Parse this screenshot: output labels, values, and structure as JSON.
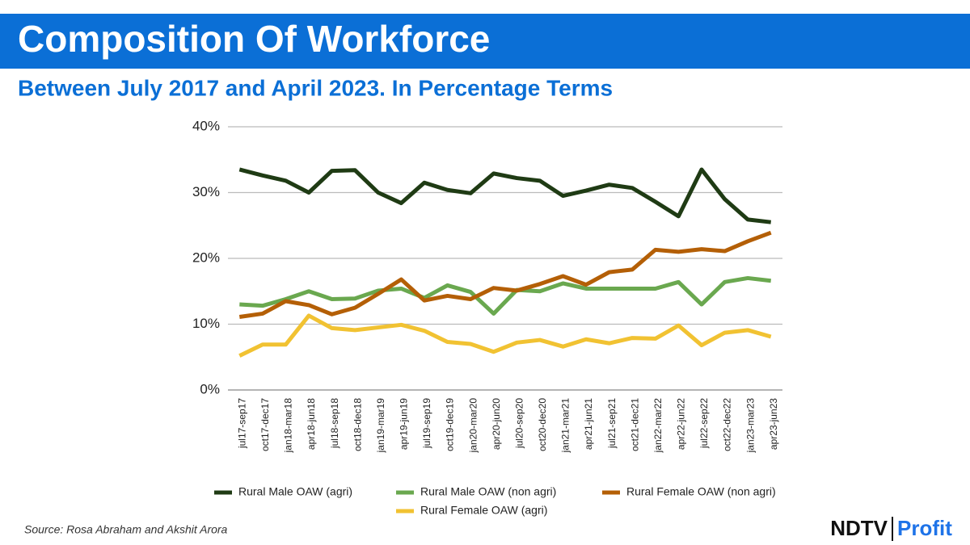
{
  "chart_data": {
    "type": "line",
    "title": "Composition Of Workforce",
    "subtitle": "Between July 2017 and April 2023. In Percentage Terms",
    "source": "Source: Rosa Abraham and Akshit Arora",
    "categories": [
      "jul17-sep17",
      "oct17-dec17",
      "jan18-mar18",
      "apr18-jun18",
      "jul18-sep18",
      "oct18-dec18",
      "jan19-mar19",
      "apr19-jun19",
      "jul19-sep19",
      "oct19-dec19",
      "jan20-mar20",
      "apr20-jun20",
      "jul20-sep20",
      "oct20-dec20",
      "jan21-mar21",
      "apr21-jun21",
      "jul21-sep21",
      "oct21-dec21",
      "jan22-mar22",
      "apr22-jun22",
      "jul22-sep22",
      "oct22-dec22",
      "jan23-mar23",
      "apr23-jun23"
    ],
    "series": [
      {
        "name": "Rural Male OAW (agri)",
        "color": "#1f3b14",
        "values": [
          33.5,
          32.6,
          31.8,
          30.0,
          33.3,
          33.4,
          30.0,
          28.4,
          31.5,
          30.4,
          29.9,
          32.9,
          32.2,
          31.8,
          29.5,
          30.3,
          31.2,
          30.7,
          28.6,
          26.4,
          33.5,
          29.0,
          25.9,
          25.5
        ]
      },
      {
        "name": "Rural Male OAW (non agri)",
        "color": "#6aa84f",
        "values": [
          13.0,
          12.8,
          13.8,
          15.0,
          13.8,
          13.9,
          15.1,
          15.4,
          14.0,
          15.9,
          14.9,
          11.6,
          15.2,
          15.0,
          16.2,
          15.4,
          15.4,
          15.4,
          15.4,
          16.4,
          13.0,
          16.4,
          17.0,
          16.6
        ]
      },
      {
        "name": "Rural Female OAW (non agri)",
        "color": "#b45f06",
        "values": [
          11.1,
          11.6,
          13.5,
          12.9,
          11.5,
          12.5,
          14.6,
          16.8,
          13.6,
          14.3,
          13.8,
          15.5,
          15.1,
          16.1,
          17.3,
          16.0,
          17.9,
          18.3,
          21.3,
          21.0,
          21.4,
          21.1,
          22.6,
          23.9
        ]
      },
      {
        "name": "Rural Female OAW (agri)",
        "color": "#f1c232",
        "values": [
          5.2,
          6.9,
          6.9,
          11.3,
          9.4,
          9.1,
          9.5,
          9.9,
          9.0,
          7.3,
          7.0,
          5.8,
          7.2,
          7.6,
          6.6,
          7.7,
          7.1,
          7.9,
          7.8,
          9.8,
          6.8,
          8.7,
          9.1,
          8.1
        ]
      }
    ],
    "ylim": [
      0,
      40
    ],
    "yticks": [
      {
        "value": 0,
        "label": "0%"
      },
      {
        "value": 10,
        "label": "10%"
      },
      {
        "value": 20,
        "label": "20%"
      },
      {
        "value": 30,
        "label": "30%"
      },
      {
        "value": 40,
        "label": "40%"
      }
    ],
    "grid": true
  },
  "logo": {
    "brand": "NDTV",
    "product": "Profit"
  }
}
